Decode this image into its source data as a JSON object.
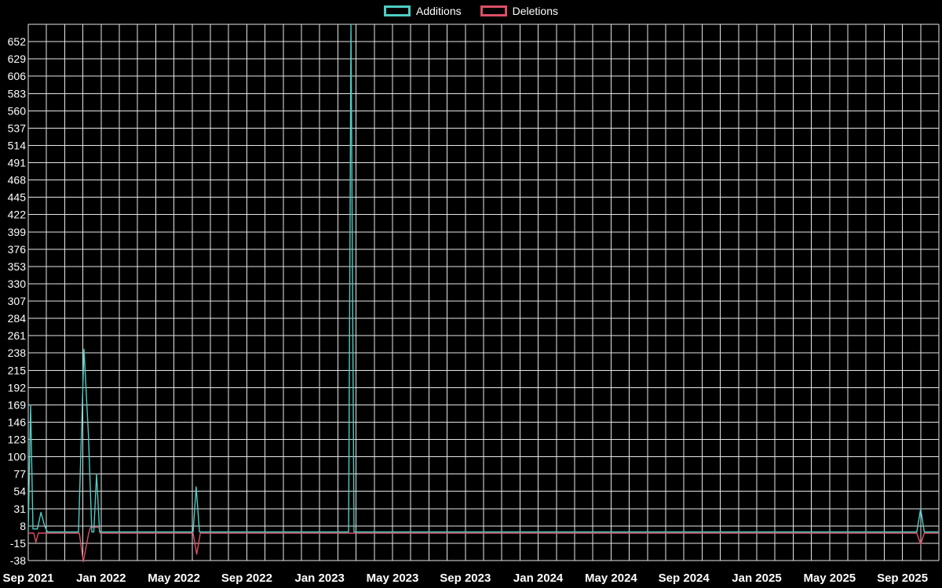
{
  "page": {
    "background": "#000000",
    "grid_color": "#ffffff",
    "text_color": "#ffffff"
  },
  "legend": {
    "items": [
      {
        "label": "Additions",
        "color": "#4ecdc4"
      },
      {
        "label": "Deletions",
        "color": "#dc5066"
      }
    ]
  },
  "chart_data": {
    "type": "line",
    "background": "#000000",
    "grid": true,
    "grid_color": "#ffffff",
    "text_color": "#ffffff",
    "legend_position": "top-center",
    "x_axis": {
      "x_unit": "months since Sep 2021",
      "domain_months": [
        0,
        50
      ],
      "ticks": [
        {
          "label": "Sep 2021",
          "month_offset": 0
        },
        {
          "label": "Jan 2022",
          "month_offset": 4
        },
        {
          "label": "May 2022",
          "month_offset": 8
        },
        {
          "label": "Sep 2022",
          "month_offset": 12
        },
        {
          "label": "Jan 2023",
          "month_offset": 16
        },
        {
          "label": "May 2023",
          "month_offset": 20
        },
        {
          "label": "Sep 2023",
          "month_offset": 24
        },
        {
          "label": "Jan 2024",
          "month_offset": 28
        },
        {
          "label": "May 2024",
          "month_offset": 32
        },
        {
          "label": "Sep 2024",
          "month_offset": 36
        },
        {
          "label": "Jan 2025",
          "month_offset": 40
        },
        {
          "label": "May 2025",
          "month_offset": 44
        },
        {
          "label": "Sep 2025",
          "month_offset": 48
        }
      ]
    },
    "y_axis": {
      "min": -38,
      "max": 675,
      "tick_step": 23,
      "tick_labels": [
        652,
        629,
        606,
        583,
        560,
        537,
        514,
        491,
        468,
        445,
        422,
        399,
        376,
        353,
        330,
        307,
        284,
        261,
        238,
        215,
        192,
        169,
        146,
        123,
        100,
        77,
        54,
        31,
        8,
        -15,
        -38
      ]
    },
    "series": [
      {
        "name": "Additions",
        "color": "#4ecdc4",
        "points": [
          [
            0,
            0
          ],
          [
            0.13,
            169
          ],
          [
            0.26,
            4
          ],
          [
            0.5,
            4
          ],
          [
            0.7,
            26
          ],
          [
            0.9,
            8
          ],
          [
            1.05,
            0
          ],
          [
            2.76,
            0
          ],
          [
            3.06,
            243
          ],
          [
            3.3,
            130
          ],
          [
            3.49,
            0
          ],
          [
            3.6,
            0
          ],
          [
            3.75,
            77
          ],
          [
            3.92,
            0
          ],
          [
            9.05,
            0
          ],
          [
            9.22,
            60
          ],
          [
            9.4,
            0
          ],
          [
            17.59,
            0
          ],
          [
            17.72,
            675
          ],
          [
            17.89,
            0
          ],
          [
            48.79,
            0
          ],
          [
            49.0,
            31
          ],
          [
            49.2,
            0
          ],
          [
            50,
            0
          ]
        ]
      },
      {
        "name": "Deletions",
        "color": "#dc5066",
        "points": [
          [
            0,
            0
          ],
          [
            0.3,
            0
          ],
          [
            0.42,
            -12
          ],
          [
            0.55,
            0
          ],
          [
            2.8,
            0
          ],
          [
            3.02,
            -38
          ],
          [
            3.32,
            0
          ],
          [
            3.42,
            8
          ],
          [
            3.88,
            8
          ],
          [
            3.95,
            0
          ],
          [
            9.05,
            0
          ],
          [
            9.25,
            -28
          ],
          [
            9.45,
            0
          ],
          [
            48.79,
            0
          ],
          [
            49.0,
            -15
          ],
          [
            49.2,
            0
          ],
          [
            50,
            0
          ]
        ]
      }
    ]
  }
}
